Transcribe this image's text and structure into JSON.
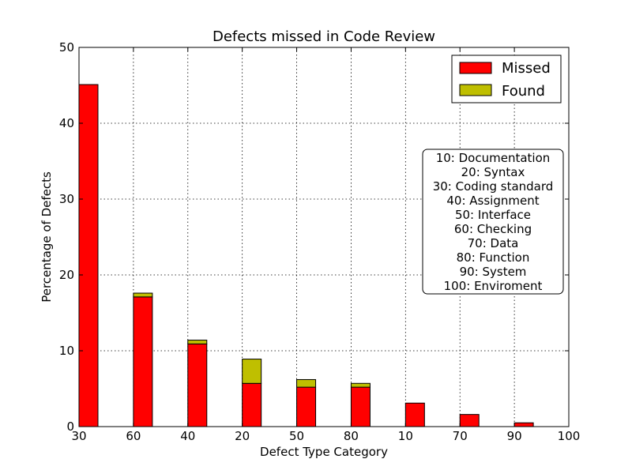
{
  "chart_data": {
    "type": "bar",
    "title": "Defects missed in Code Review",
    "xlabel": "Defect Type Category",
    "ylabel": "Percentage of Defects",
    "ylim": [
      0,
      50
    ],
    "yticks": [
      0,
      10,
      20,
      30,
      40,
      50
    ],
    "categories": [
      "30",
      "60",
      "40",
      "20",
      "50",
      "80",
      "10",
      "70",
      "90",
      "100"
    ],
    "stacked": true,
    "grid": true,
    "series": [
      {
        "name": "Missed",
        "color": "#ff0000",
        "values": [
          45.1,
          17.1,
          10.9,
          5.7,
          5.2,
          5.2,
          3.1,
          1.6,
          0.5,
          0.0
        ]
      },
      {
        "name": "Found",
        "color": "#bfbf00",
        "values": [
          0.0,
          0.5,
          0.5,
          3.2,
          1.0,
          0.5,
          0.0,
          0.0,
          0.0,
          0.0
        ]
      }
    ],
    "legend": {
      "location": "upper right",
      "entries": [
        "Missed",
        "Found"
      ]
    },
    "annotation": [
      "10: Documentation",
      "20: Syntax",
      "30: Coding standard",
      "40: Assignment",
      "50: Interface",
      "60: Checking",
      "70: Data",
      "80: Function",
      "90: System",
      "100: Enviroment"
    ]
  }
}
